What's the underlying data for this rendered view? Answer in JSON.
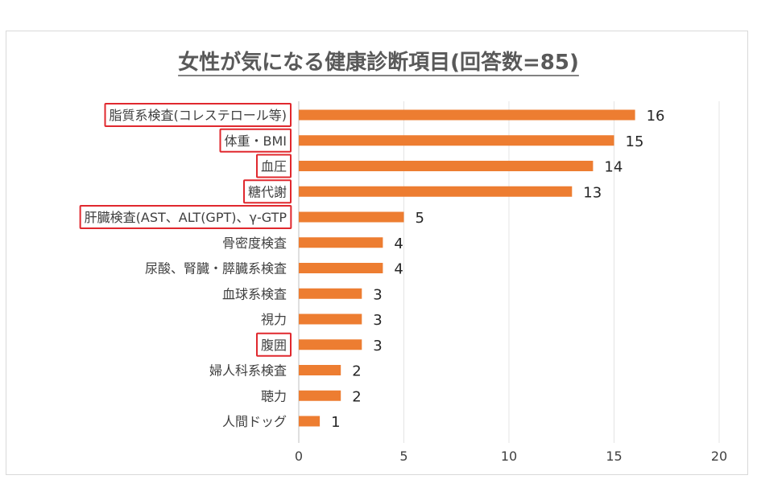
{
  "chart_data": {
    "type": "bar",
    "orientation": "horizontal",
    "title": "女性が気になる健康診断項目(回答数=85)",
    "categories": [
      "脂質系検査(コレステロール等)",
      "体重・BMI",
      "血圧",
      "糖代謝",
      "肝臓検査(AST、ALT(GPT)、γ-GTP",
      "骨密度検査",
      "尿酸、腎臓・膵臓系検査",
      "血球系検査",
      "視力",
      "腹囲",
      "婦人科系検査",
      "聴力",
      "人間ドッグ"
    ],
    "values": [
      16,
      15,
      14,
      13,
      5,
      4,
      4,
      3,
      3,
      3,
      2,
      2,
      1
    ],
    "highlighted": [
      true,
      true,
      true,
      true,
      true,
      false,
      false,
      false,
      false,
      true,
      false,
      false,
      false
    ],
    "xlim": [
      0,
      20
    ],
    "xticks": [
      0,
      5,
      10,
      15,
      20
    ],
    "grid": true,
    "bar_color": "#ED7D31",
    "highlight_color": "#E0282E"
  }
}
